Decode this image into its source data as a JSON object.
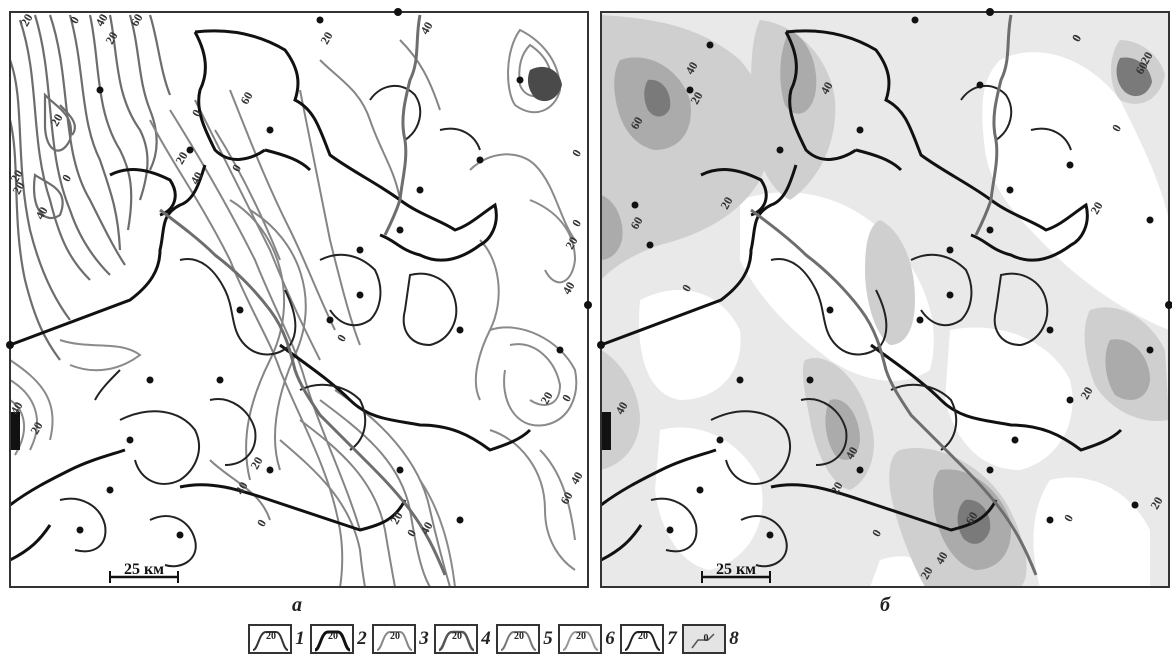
{
  "panels": [
    {
      "id": "a",
      "label": "а",
      "scale_label": "25 км"
    },
    {
      "id": "b",
      "label": "б",
      "scale_label": "25 км"
    }
  ],
  "contour_labels_a": [
    "20",
    "0",
    "40",
    "60",
    "20",
    "20",
    "0",
    "20",
    "40",
    "20",
    "0",
    "20",
    "40",
    "0",
    "60",
    "20",
    "40",
    "0",
    "0",
    "20",
    "40",
    "0",
    "20",
    "40",
    "60",
    "20",
    "40",
    "40",
    "20",
    "0",
    "0",
    "20",
    "40",
    "0"
  ],
  "contour_labels_b": [
    "40",
    "20",
    "60",
    "40",
    "0",
    "20",
    "60",
    "0",
    "20",
    "0",
    "60",
    "40",
    "20",
    "20",
    "40",
    "20",
    "0",
    "0",
    "60",
    "40",
    "20",
    "0",
    "20"
  ],
  "legend": [
    {
      "num": "1",
      "box_label": "20",
      "stroke": "#333333",
      "width": 2
    },
    {
      "num": "2",
      "box_label": "20",
      "stroke": "#111111",
      "width": 3
    },
    {
      "num": "3",
      "box_label": "20",
      "stroke": "#888888",
      "width": 2
    },
    {
      "num": "4",
      "box_label": "20",
      "stroke": "#555555",
      "width": 2.5
    },
    {
      "num": "5",
      "box_label": "20",
      "stroke": "#777777",
      "width": 2
    },
    {
      "num": "6",
      "box_label": "20",
      "stroke": "#999999",
      "width": 2
    },
    {
      "num": "7",
      "box_label": "20",
      "stroke": "#222222",
      "width": 2
    },
    {
      "num": "8",
      "box_label": "0",
      "stroke": "#555555",
      "width": 1.5,
      "fill": "#e4e4e4"
    }
  ],
  "colors": {
    "zone_light": "#e9e9e9",
    "zone_mid": "#cfcfcf",
    "zone_dark": "#a9a9a9",
    "zone_darkest": "#7a7a7a",
    "boundary": "#111111",
    "river": "#6e6e6e",
    "isoline": "#7d7d7d"
  }
}
